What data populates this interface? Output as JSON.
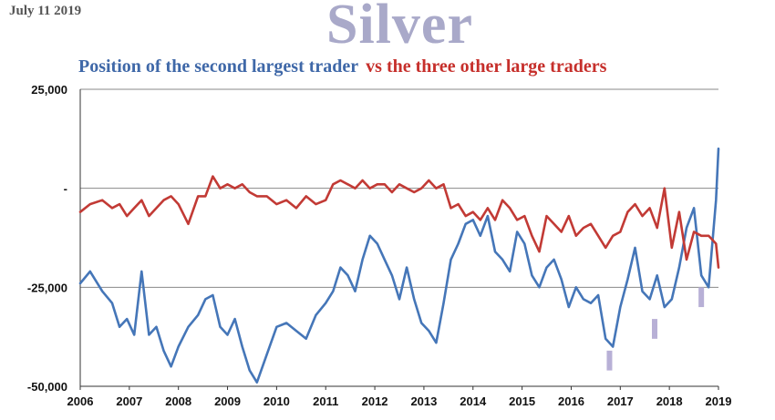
{
  "header": {
    "date": "July 11 2019",
    "title": "Silver",
    "subtitle_blue": "Position of the second largest trader",
    "subtitle_red": "vs the three other large traders"
  },
  "colors": {
    "blue_series": "#4576b8",
    "red_series": "#c23a35",
    "grid": "#8a8a8a",
    "marker": "#b8b0d6"
  },
  "chart_data": {
    "type": "line",
    "title": "Position of the second largest trader vs the three other large traders",
    "xlabel": "",
    "ylabel": "",
    "xlim": [
      2006,
      2019
    ],
    "ylim": [
      -50000,
      25000
    ],
    "x_tick_labels": [
      "2006",
      "2007",
      "2008",
      "2009",
      "2010",
      "2011",
      "2012",
      "2013",
      "2014",
      "2015",
      "2016",
      "2017",
      "2018",
      "2019"
    ],
    "y_ticks": [
      {
        "value": 25000,
        "label": "25,000"
      },
      {
        "value": 0,
        "label": "-"
      },
      {
        "value": -25000,
        "label": "-25,000"
      },
      {
        "value": -50000,
        "label": "-50,000"
      }
    ],
    "grid": {
      "horizontal": true,
      "vertical": false
    },
    "series": [
      {
        "name": "Position of the second largest trader",
        "color": "#4576b8",
        "x": [
          2006.0,
          2006.2,
          2006.45,
          2006.65,
          2006.8,
          2006.95,
          2007.1,
          2007.25,
          2007.4,
          2007.55,
          2007.7,
          2007.85,
          2008.0,
          2008.2,
          2008.4,
          2008.55,
          2008.7,
          2008.85,
          2009.0,
          2009.15,
          2009.3,
          2009.45,
          2009.6,
          2009.8,
          2010.0,
          2010.2,
          2010.4,
          2010.6,
          2010.8,
          2011.0,
          2011.15,
          2011.3,
          2011.45,
          2011.6,
          2011.75,
          2011.9,
          2012.05,
          2012.2,
          2012.35,
          2012.5,
          2012.65,
          2012.8,
          2012.95,
          2013.1,
          2013.25,
          2013.4,
          2013.55,
          2013.7,
          2013.85,
          2014.0,
          2014.15,
          2014.3,
          2014.45,
          2014.6,
          2014.75,
          2014.9,
          2015.05,
          2015.2,
          2015.35,
          2015.5,
          2015.65,
          2015.8,
          2015.95,
          2016.1,
          2016.25,
          2016.4,
          2016.55,
          2016.7,
          2016.85,
          2017.0,
          2017.15,
          2017.3,
          2017.45,
          2017.6,
          2017.75,
          2017.9,
          2018.05,
          2018.2,
          2018.35,
          2018.5,
          2018.65,
          2018.8,
          2018.95,
          2019.0
        ],
        "y": [
          -24000,
          -21000,
          -26000,
          -29000,
          -35000,
          -33000,
          -37000,
          -21000,
          -37000,
          -35000,
          -41000,
          -45000,
          -40000,
          -35000,
          -32000,
          -28000,
          -27000,
          -35000,
          -37000,
          -33000,
          -40000,
          -46000,
          -49000,
          -42000,
          -35000,
          -34000,
          -36000,
          -38000,
          -32000,
          -29000,
          -26000,
          -20000,
          -22000,
          -26000,
          -18000,
          -12000,
          -14000,
          -18000,
          -22000,
          -28000,
          -20000,
          -28000,
          -34000,
          -36000,
          -39000,
          -29000,
          -18000,
          -14000,
          -9000,
          -8000,
          -12000,
          -7000,
          -16000,
          -18000,
          -21000,
          -11000,
          -14000,
          -22000,
          -25000,
          -20000,
          -18000,
          -23000,
          -30000,
          -25000,
          -28000,
          -29000,
          -27000,
          -38000,
          -40000,
          -30000,
          -23000,
          -15000,
          -26000,
          -28000,
          -22000,
          -30000,
          -28000,
          -20000,
          -10000,
          -5000,
          -22000,
          -25000,
          -3000,
          10000
        ]
      },
      {
        "name": "vs the three other large traders",
        "color": "#c23a35",
        "x": [
          2006.0,
          2006.2,
          2006.45,
          2006.65,
          2006.8,
          2006.95,
          2007.1,
          2007.25,
          2007.4,
          2007.55,
          2007.7,
          2007.85,
          2008.0,
          2008.2,
          2008.4,
          2008.55,
          2008.7,
          2008.85,
          2009.0,
          2009.15,
          2009.3,
          2009.45,
          2009.6,
          2009.8,
          2010.0,
          2010.2,
          2010.4,
          2010.6,
          2010.8,
          2011.0,
          2011.15,
          2011.3,
          2011.45,
          2011.6,
          2011.75,
          2011.9,
          2012.05,
          2012.2,
          2012.35,
          2012.5,
          2012.65,
          2012.8,
          2012.95,
          2013.1,
          2013.25,
          2013.4,
          2013.55,
          2013.7,
          2013.85,
          2014.0,
          2014.15,
          2014.3,
          2014.45,
          2014.6,
          2014.75,
          2014.9,
          2015.05,
          2015.2,
          2015.35,
          2015.5,
          2015.65,
          2015.8,
          2015.95,
          2016.1,
          2016.25,
          2016.4,
          2016.55,
          2016.7,
          2016.85,
          2017.0,
          2017.15,
          2017.3,
          2017.45,
          2017.6,
          2017.75,
          2017.9,
          2018.05,
          2018.2,
          2018.35,
          2018.5,
          2018.65,
          2018.8,
          2018.95,
          2019.0
        ],
        "y": [
          -6000,
          -4000,
          -3000,
          -5000,
          -4000,
          -7000,
          -5000,
          -3000,
          -7000,
          -5000,
          -3000,
          -2000,
          -4000,
          -9000,
          -2000,
          -2000,
          3000,
          0,
          1000,
          0,
          1000,
          -1000,
          -2000,
          -2000,
          -4000,
          -3000,
          -5000,
          -2000,
          -4000,
          -3000,
          1000,
          2000,
          1000,
          0,
          2000,
          0,
          1000,
          1000,
          -1000,
          1000,
          0,
          -1000,
          0,
          2000,
          0,
          1000,
          -5000,
          -4000,
          -7000,
          -6000,
          -8000,
          -5000,
          -8000,
          -3000,
          -5000,
          -8000,
          -7000,
          -12000,
          -16000,
          -7000,
          -9000,
          -11000,
          -7000,
          -12000,
          -10000,
          -9000,
          -12000,
          -15000,
          -12000,
          -11000,
          -6000,
          -4000,
          -7000,
          -5000,
          -10000,
          0,
          -15000,
          -6000,
          -18000,
          -11000,
          -12000,
          -12000,
          -14000,
          -20000
        ]
      }
    ],
    "markers": [
      {
        "x": 2016.78,
        "y_top": -41000,
        "y_bottom": -46000
      },
      {
        "x": 2017.7,
        "y_top": -33000,
        "y_bottom": -38000
      },
      {
        "x": 2018.65,
        "y_top": -25000,
        "y_bottom": -30000
      }
    ]
  }
}
